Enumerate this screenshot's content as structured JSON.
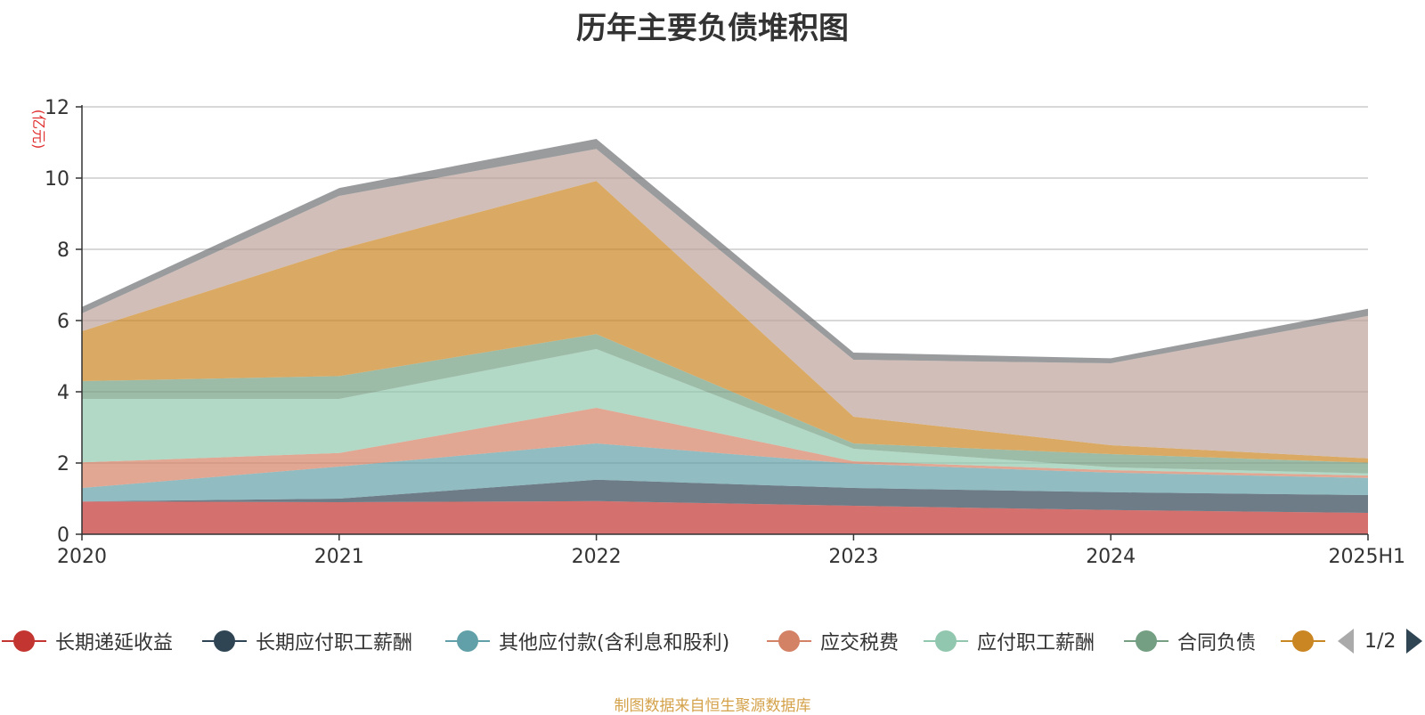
{
  "chart_data": {
    "type": "area",
    "stacked": true,
    "title": "历年主要负债堆积图",
    "ylabel": "(亿元)",
    "xlabel": "",
    "ylim": [
      0,
      12
    ],
    "y_ticks": [
      0,
      2,
      4,
      6,
      8,
      10,
      12
    ],
    "grid": true,
    "legend_position": "bottom",
    "categories": [
      "2020",
      "2021",
      "2022",
      "2023",
      "2024",
      "2025H1"
    ],
    "series": [
      {
        "name": "长期递延收益",
        "color": "#c23531",
        "values": [
          0.92,
          0.9,
          0.93,
          0.8,
          0.68,
          0.6
        ]
      },
      {
        "name": "长期应付职工薪酬",
        "color": "#2f4554",
        "values": [
          0.0,
          0.1,
          0.6,
          0.5,
          0.5,
          0.5
        ]
      },
      {
        "name": "其他应付款(含利息和股利)",
        "color": "#61a0a8",
        "values": [
          0.38,
          0.9,
          1.02,
          0.68,
          0.55,
          0.48
        ]
      },
      {
        "name": "应交税费",
        "color": "#d48265",
        "values": [
          0.72,
          0.38,
          1.0,
          0.07,
          0.07,
          0.07
        ]
      },
      {
        "name": "应付职工薪酬",
        "color": "#91c7ae",
        "values": [
          1.78,
          1.52,
          1.65,
          0.35,
          0.08,
          0.06
        ]
      },
      {
        "name": "合同负债",
        "color": "#749f83",
        "values": [
          0.5,
          0.64,
          0.42,
          0.15,
          0.37,
          0.3
        ]
      },
      {
        "name": "",
        "color": "#ca8622",
        "values": [
          1.4,
          3.56,
          4.3,
          0.75,
          0.25,
          0.12
        ]
      },
      {
        "name": "",
        "color": "#bda29a",
        "values": [
          0.5,
          1.5,
          0.9,
          1.6,
          2.3,
          4.0
        ]
      },
      {
        "name": "",
        "color": "#6e7074",
        "values": [
          0.18,
          0.22,
          0.28,
          0.2,
          0.14,
          0.2
        ]
      }
    ]
  },
  "legend": {
    "page": "1/2"
  },
  "source_note": "制图数据来自恒生聚源数据库"
}
